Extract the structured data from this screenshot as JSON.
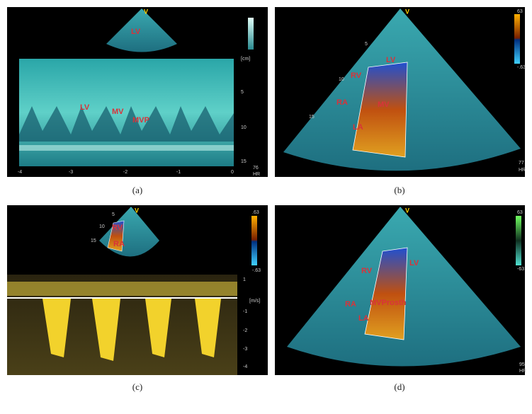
{
  "panels": [
    {
      "caption": "(a)",
      "labels": [
        "LV",
        "LV",
        "MV",
        "MVP"
      ],
      "scale": [
        "[cm]",
        "5",
        "10",
        "15"
      ],
      "axis": [
        "-4",
        "-3",
        "-2",
        "-1",
        "0"
      ],
      "hr": [
        "76",
        "HR"
      ],
      "marker": "V"
    },
    {
      "caption": "(b)",
      "labels": [
        "LV",
        "RV",
        "RA",
        "MV",
        "LA"
      ],
      "scale": [
        "63",
        "-.63"
      ],
      "depth": [
        "5",
        "10",
        "15"
      ],
      "hr": [
        "77",
        "HR"
      ],
      "marker": "V"
    },
    {
      "caption": "(c)",
      "labels": [
        "RV",
        "RA"
      ],
      "scale": [
        ".63",
        "-.63"
      ],
      "depth": [
        "5",
        "10",
        "15"
      ],
      "axis": [
        "1",
        "[m/s]",
        "-1",
        "-2",
        "-3",
        "-4"
      ],
      "marker": "V"
    },
    {
      "caption": "(d)",
      "labels": [
        "RV",
        "LV",
        "RA",
        "MVProsth",
        "LA"
      ],
      "scale": [
        "63",
        "-63"
      ],
      "hr": [
        "95",
        "HR"
      ],
      "marker": "V"
    }
  ]
}
